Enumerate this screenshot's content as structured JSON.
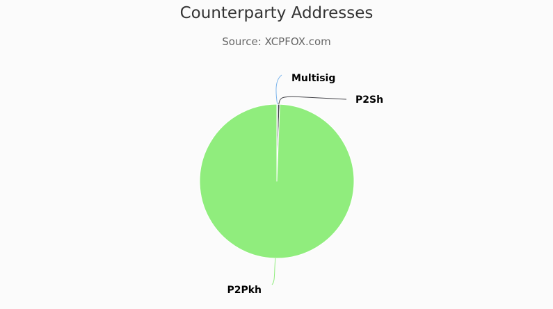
{
  "chart_data": {
    "type": "pie",
    "title": "Counterparty Addresses",
    "subtitle": "Source: XCPFOX.com",
    "slices": [
      {
        "name": "Multisig",
        "value": 0.2,
        "color": "#7cb5ec"
      },
      {
        "name": "P2Sh",
        "value": 0.4,
        "color": "#434348"
      },
      {
        "name": "P2Pkh",
        "value": 99.4,
        "color": "#90ed7d"
      }
    ]
  }
}
